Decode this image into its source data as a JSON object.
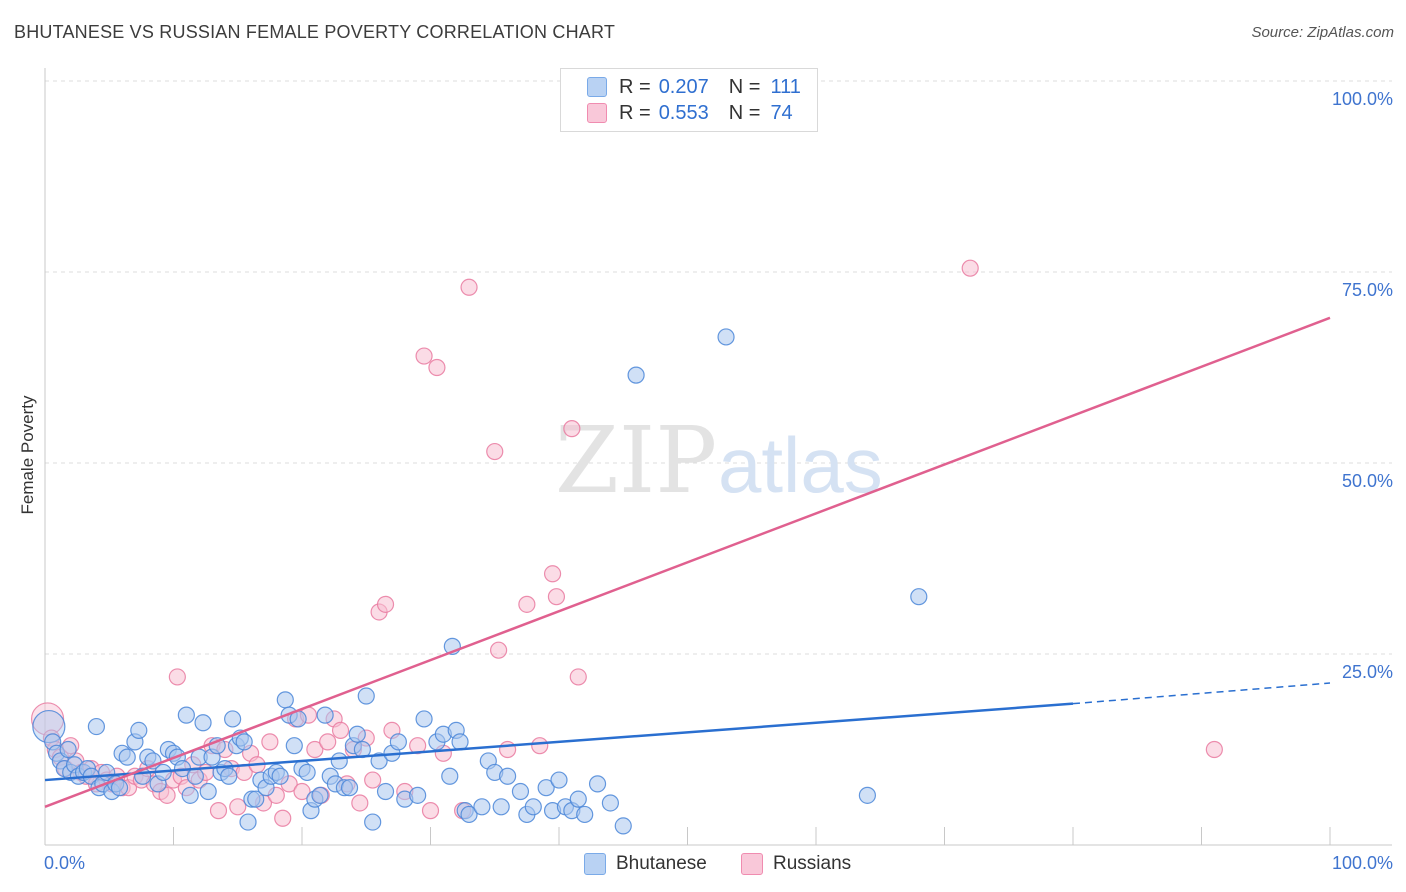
{
  "title": "BHUTANESE VS RUSSIAN FEMALE POVERTY CORRELATION CHART",
  "source": "Source: ZipAtlas.com",
  "watermark": {
    "zip": "ZIP",
    "atlas": "atlas"
  },
  "legend": {
    "rows": [
      {
        "r_label": "R =",
        "r_value": "0.207",
        "n_label": "N =",
        "n_value": "111",
        "color": "#7aaae8",
        "fill": "#b9d2f3"
      },
      {
        "r_label": "R =",
        "r_value": "0.553",
        "n_label": "N =",
        "n_value": "74",
        "color": "#f08cb0",
        "fill": "#f9c8d9"
      }
    ]
  },
  "bottom_legend": [
    {
      "label": "Bhutanese",
      "color": "#7aaae8",
      "fill": "#b9d2f3"
    },
    {
      "label": "Russians",
      "color": "#f08cb0",
      "fill": "#f9c8d9"
    }
  ],
  "chart_data": {
    "type": "scatter",
    "title": "BHUTANESE VS RUSSIAN FEMALE POVERTY CORRELATION CHART",
    "xlabel": "",
    "ylabel": "Female Poverty",
    "xlim": [
      0,
      100
    ],
    "ylim": [
      0,
      100
    ],
    "x_tick_labels": [
      "0.0%",
      "100.0%"
    ],
    "y_tick_labels": [
      "100.0%",
      "75.0%",
      "50.0%",
      "25.0%"
    ],
    "y_ticks": [
      100,
      75,
      50,
      25
    ],
    "grid": true,
    "legend_position": "top-center",
    "series": [
      {
        "name": "Bhutanese",
        "color": "#4a86d8",
        "fill": "#a9c7ef",
        "trend": {
          "x0": 0,
          "y0": 8.5,
          "x1": 80,
          "y1": 18.5,
          "dashed_to_x": 100,
          "dashed_to_y": 21.2,
          "color": "#2a6fd0"
        },
        "points": [
          [
            0.3,
            15.5
          ],
          [
            0.6,
            13.5
          ],
          [
            0.9,
            12.0
          ],
          [
            1.2,
            11.0
          ],
          [
            1.5,
            10.0
          ],
          [
            1.8,
            12.5
          ],
          [
            2.0,
            9.5
          ],
          [
            2.3,
            10.5
          ],
          [
            2.6,
            9.0
          ],
          [
            3.0,
            9.5
          ],
          [
            3.3,
            10.0
          ],
          [
            3.6,
            9.0
          ],
          [
            4.0,
            15.5
          ],
          [
            4.2,
            7.5
          ],
          [
            4.5,
            8.0
          ],
          [
            4.8,
            9.5
          ],
          [
            5.2,
            7.0
          ],
          [
            5.5,
            8.0
          ],
          [
            5.8,
            7.5
          ],
          [
            6.0,
            12.0
          ],
          [
            6.4,
            11.5
          ],
          [
            7.0,
            13.5
          ],
          [
            7.3,
            15.0
          ],
          [
            7.6,
            9.0
          ],
          [
            8.0,
            11.5
          ],
          [
            8.4,
            11.0
          ],
          [
            8.8,
            8.0
          ],
          [
            9.2,
            9.5
          ],
          [
            9.6,
            12.5
          ],
          [
            10.0,
            12.0
          ],
          [
            10.3,
            11.5
          ],
          [
            10.7,
            10.0
          ],
          [
            11.0,
            17.0
          ],
          [
            11.3,
            6.5
          ],
          [
            11.7,
            9.0
          ],
          [
            12.0,
            11.5
          ],
          [
            12.3,
            16.0
          ],
          [
            12.7,
            7.0
          ],
          [
            13.0,
            11.5
          ],
          [
            13.4,
            13.0
          ],
          [
            13.7,
            9.5
          ],
          [
            14.0,
            10.0
          ],
          [
            14.3,
            9.0
          ],
          [
            14.6,
            16.5
          ],
          [
            14.9,
            13.0
          ],
          [
            15.2,
            14.0
          ],
          [
            15.5,
            13.5
          ],
          [
            15.8,
            3.0
          ],
          [
            16.1,
            6.0
          ],
          [
            16.4,
            6.0
          ],
          [
            16.8,
            8.5
          ],
          [
            17.2,
            7.5
          ],
          [
            17.6,
            9.0
          ],
          [
            18.0,
            9.5
          ],
          [
            18.3,
            9.0
          ],
          [
            18.7,
            19.0
          ],
          [
            19.0,
            17.0
          ],
          [
            19.4,
            13.0
          ],
          [
            19.7,
            16.5
          ],
          [
            20.0,
            10.0
          ],
          [
            20.4,
            9.5
          ],
          [
            20.7,
            4.5
          ],
          [
            21.0,
            6.0
          ],
          [
            21.4,
            6.5
          ],
          [
            21.8,
            17.0
          ],
          [
            22.2,
            9.0
          ],
          [
            22.6,
            8.0
          ],
          [
            22.9,
            11.0
          ],
          [
            23.3,
            7.5
          ],
          [
            23.7,
            7.5
          ],
          [
            24.0,
            13.0
          ],
          [
            24.3,
            14.5
          ],
          [
            24.7,
            12.5
          ],
          [
            25.0,
            19.5
          ],
          [
            25.5,
            3.0
          ],
          [
            26.0,
            11.0
          ],
          [
            26.5,
            7.0
          ],
          [
            27.0,
            12.0
          ],
          [
            27.5,
            13.5
          ],
          [
            28.0,
            6.0
          ],
          [
            29.0,
            6.5
          ],
          [
            29.5,
            16.5
          ],
          [
            30.5,
            13.5
          ],
          [
            31.0,
            14.5
          ],
          [
            31.5,
            9.0
          ],
          [
            31.7,
            26.0
          ],
          [
            32.0,
            15.0
          ],
          [
            32.3,
            13.5
          ],
          [
            32.7,
            4.5
          ],
          [
            33.0,
            4.0
          ],
          [
            34.0,
            5.0
          ],
          [
            34.5,
            11.0
          ],
          [
            35.0,
            9.5
          ],
          [
            35.5,
            5.0
          ],
          [
            36.0,
            9.0
          ],
          [
            37.0,
            7.0
          ],
          [
            37.5,
            4.0
          ],
          [
            38.0,
            5.0
          ],
          [
            39.0,
            7.5
          ],
          [
            39.5,
            4.5
          ],
          [
            40.0,
            8.5
          ],
          [
            40.5,
            5.0
          ],
          [
            41.0,
            4.5
          ],
          [
            41.5,
            6.0
          ],
          [
            42.0,
            4.0
          ],
          [
            43.0,
            8.0
          ],
          [
            44.0,
            5.5
          ],
          [
            45.0,
            2.5
          ],
          [
            46.0,
            61.5
          ],
          [
            53.0,
            66.5
          ],
          [
            64.0,
            6.5
          ],
          [
            68.0,
            32.5
          ]
        ]
      },
      {
        "name": "Russians",
        "color": "#e97aa0",
        "fill": "#f7bfd2",
        "trend": {
          "x0": 0,
          "y0": 5.0,
          "x1": 100,
          "y1": 69.0,
          "color": "#e0608f"
        },
        "points": [
          [
            0.2,
            16.5
          ],
          [
            0.5,
            14.0
          ],
          [
            0.8,
            12.5
          ],
          [
            1.2,
            11.5
          ],
          [
            1.6,
            10.0
          ],
          [
            2.0,
            13.0
          ],
          [
            2.4,
            11.0
          ],
          [
            2.8,
            9.5
          ],
          [
            3.2,
            9.0
          ],
          [
            3.6,
            10.0
          ],
          [
            4.0,
            8.0
          ],
          [
            4.4,
            9.5
          ],
          [
            4.8,
            8.5
          ],
          [
            5.2,
            8.0
          ],
          [
            5.6,
            9.0
          ],
          [
            6.0,
            7.5
          ],
          [
            6.5,
            7.5
          ],
          [
            7.0,
            9.0
          ],
          [
            7.5,
            8.5
          ],
          [
            8.0,
            10.0
          ],
          [
            8.5,
            8.0
          ],
          [
            9.0,
            7.0
          ],
          [
            9.5,
            6.5
          ],
          [
            10.0,
            8.5
          ],
          [
            10.3,
            22.0
          ],
          [
            10.6,
            9.0
          ],
          [
            11.0,
            7.5
          ],
          [
            11.5,
            10.5
          ],
          [
            12.0,
            8.5
          ],
          [
            12.5,
            9.5
          ],
          [
            13.0,
            13.0
          ],
          [
            13.5,
            4.5
          ],
          [
            14.0,
            12.5
          ],
          [
            14.5,
            10.0
          ],
          [
            15.0,
            5.0
          ],
          [
            15.5,
            9.5
          ],
          [
            16.0,
            12.0
          ],
          [
            16.5,
            10.5
          ],
          [
            17.0,
            5.5
          ],
          [
            17.5,
            13.5
          ],
          [
            18.0,
            6.5
          ],
          [
            18.5,
            3.5
          ],
          [
            19.0,
            8.0
          ],
          [
            19.5,
            16.5
          ],
          [
            20.0,
            7.0
          ],
          [
            20.5,
            17.0
          ],
          [
            21.0,
            12.5
          ],
          [
            21.5,
            6.5
          ],
          [
            22.0,
            13.5
          ],
          [
            22.5,
            16.5
          ],
          [
            23.0,
            15.0
          ],
          [
            23.5,
            8.0
          ],
          [
            24.0,
            12.5
          ],
          [
            24.5,
            5.5
          ],
          [
            25.0,
            14.0
          ],
          [
            25.5,
            8.5
          ],
          [
            26.0,
            30.5
          ],
          [
            26.5,
            31.5
          ],
          [
            27.0,
            15.0
          ],
          [
            28.0,
            7.0
          ],
          [
            29.0,
            13.0
          ],
          [
            29.5,
            64.0
          ],
          [
            30.0,
            4.5
          ],
          [
            30.5,
            62.5
          ],
          [
            31.0,
            12.0
          ],
          [
            32.5,
            4.5
          ],
          [
            33.0,
            73.0
          ],
          [
            35.0,
            51.5
          ],
          [
            35.3,
            25.5
          ],
          [
            36.0,
            12.5
          ],
          [
            37.5,
            31.5
          ],
          [
            38.5,
            13.0
          ],
          [
            39.5,
            35.5
          ],
          [
            39.8,
            32.5
          ],
          [
            41.0,
            54.5
          ],
          [
            41.5,
            22.0
          ],
          [
            72.0,
            75.5
          ],
          [
            91.0,
            12.5
          ]
        ]
      }
    ]
  }
}
